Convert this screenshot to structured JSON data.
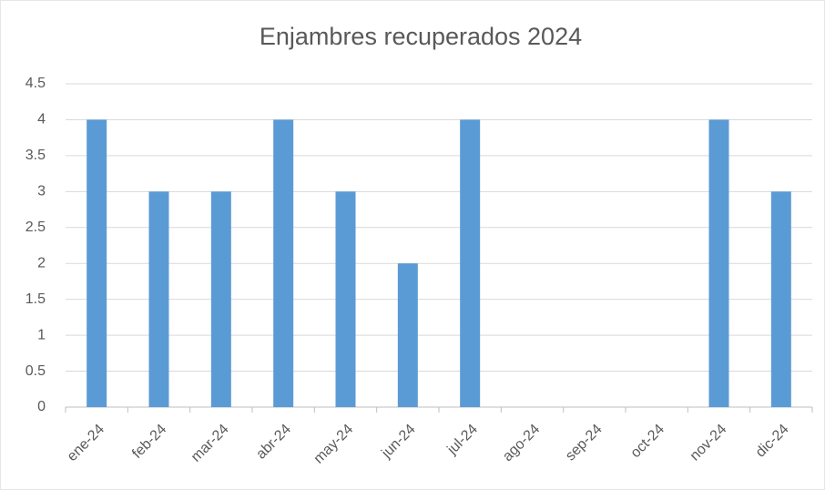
{
  "chart_data": {
    "type": "bar",
    "title": "Enjambres recuperados 2024",
    "categories": [
      "ene-24",
      "feb-24",
      "mar-24",
      "abr-24",
      "may-24",
      "jun-24",
      "jul-24",
      "ago-24",
      "sep-24",
      "oct-24",
      "nov-24",
      "dic-24"
    ],
    "values": [
      4,
      3,
      3,
      4,
      3,
      2,
      4,
      0,
      0,
      0,
      4,
      3
    ],
    "color": "#5b9bd5",
    "ylim": [
      0,
      4.5
    ],
    "yticks": [
      0,
      0.5,
      1,
      1.5,
      2,
      2.5,
      3,
      3.5,
      4,
      4.5
    ],
    "grid": true
  }
}
